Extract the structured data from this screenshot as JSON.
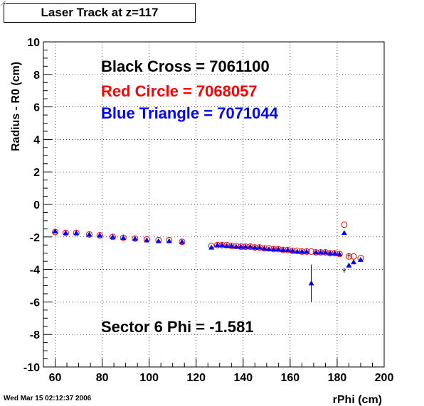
{
  "title_box": "Laser Track at z=117",
  "timestamp": "Wed Mar 15 02:12:37 2006",
  "chart_data": {
    "type": "scatter",
    "title": "Laser Track at z=117",
    "xlabel": "rPhi (cm)",
    "ylabel": "Radius - R0 (cm)",
    "xlim": [
      55,
      200
    ],
    "ylim": [
      -10,
      10
    ],
    "x_ticks": [
      60,
      80,
      100,
      120,
      140,
      160,
      180,
      200
    ],
    "y_ticks": [
      -10,
      -8,
      -6,
      -4,
      -2,
      0,
      2,
      4,
      6,
      8,
      10
    ],
    "grid": true,
    "annotations": {
      "black": "Black Cross  = 7061100",
      "red": "Red Circle = 7068057",
      "blue": "Blue Triangle = 7071044",
      "sector": "Sector 6 Phi = -1.581"
    },
    "colors": {
      "black": "#000000",
      "red": "#ff0000",
      "blue": "#0000ff"
    },
    "series": [
      {
        "marker": "circle",
        "color": "#ff0000",
        "x": [
          60,
          64.5,
          69,
          74.5,
          79,
          84.5,
          89,
          94,
          99,
          104,
          108.5,
          114,
          126.5,
          129,
          131,
          133,
          135,
          137,
          139,
          141,
          143,
          145,
          147,
          149,
          151,
          153,
          155,
          157,
          159,
          161,
          163,
          165,
          167,
          169,
          171,
          173,
          175,
          177,
          179,
          181,
          183,
          185,
          187,
          190
        ],
        "y": [
          -1.7,
          -1.75,
          -1.75,
          -1.85,
          -1.9,
          -2.0,
          -2.05,
          -2.1,
          -2.15,
          -2.2,
          -2.2,
          -2.3,
          -2.55,
          -2.5,
          -2.5,
          -2.5,
          -2.55,
          -2.55,
          -2.6,
          -2.6,
          -2.6,
          -2.65,
          -2.65,
          -2.7,
          -2.7,
          -2.75,
          -2.75,
          -2.8,
          -2.8,
          -2.85,
          -2.85,
          -2.9,
          -2.9,
          -2.9,
          -2.95,
          -2.95,
          -2.95,
          -3.0,
          -3.0,
          -3.05,
          -1.25,
          -3.2,
          -3.2,
          -3.3
        ]
      },
      {
        "marker": "triangle",
        "color": "#0000ff",
        "x": [
          60,
          64.5,
          69,
          74.5,
          79,
          84.5,
          89,
          94,
          99,
          104,
          108.5,
          114,
          126.5,
          129,
          131,
          133,
          135,
          137,
          139,
          141,
          143,
          145,
          147,
          149,
          151,
          153,
          155,
          157,
          159,
          161,
          163,
          165,
          167,
          169,
          171,
          173,
          175,
          177,
          179,
          181,
          183,
          185,
          187,
          190
        ],
        "y": [
          -1.65,
          -1.75,
          -1.75,
          -1.85,
          -1.9,
          -2.0,
          -2.05,
          -2.1,
          -2.2,
          -2.25,
          -2.25,
          -2.3,
          -2.65,
          -2.5,
          -2.5,
          -2.55,
          -2.55,
          -2.6,
          -2.6,
          -2.6,
          -2.6,
          -2.65,
          -2.65,
          -2.7,
          -2.75,
          -2.75,
          -2.75,
          -2.8,
          -2.8,
          -2.85,
          -2.9,
          -2.9,
          -2.9,
          -4.85,
          -2.95,
          -2.95,
          -2.95,
          -3.0,
          -3.0,
          -3.05,
          -1.75,
          -3.75,
          -3.55,
          -3.4
        ]
      },
      {
        "marker": "cross",
        "color": "#000000",
        "x": [
          169,
          183,
          185
        ],
        "y": [
          -4.85,
          -4.05,
          -3.15
        ],
        "y_err": [
          1.15,
          0.15,
          0.15
        ]
      }
    ]
  }
}
